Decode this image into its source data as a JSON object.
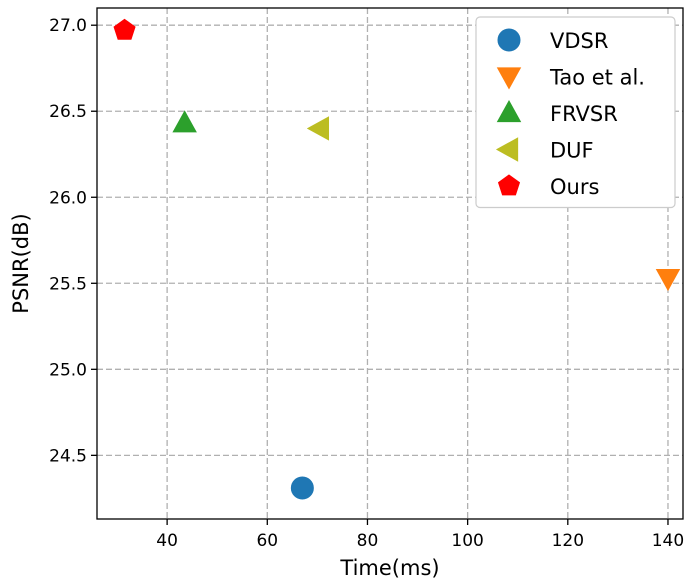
{
  "chart_data": {
    "type": "scatter",
    "title": "",
    "xlabel": "Time(ms)",
    "ylabel": "PSNR(dB)",
    "xlim": [
      26,
      143
    ],
    "ylim": [
      24.13,
      27.1
    ],
    "xticks": [
      40,
      60,
      80,
      100,
      120,
      140
    ],
    "yticks": [
      24.5,
      25.0,
      25.5,
      26.0,
      26.5,
      27.0
    ],
    "xtick_labels": [
      "40",
      "60",
      "80",
      "100",
      "120",
      "140"
    ],
    "ytick_labels": [
      "24.5",
      "25.0",
      "25.5",
      "26.0",
      "26.5",
      "27.0"
    ],
    "grid": true,
    "legend_position": "top-right",
    "series": [
      {
        "name": "VDSR",
        "marker": "circle",
        "color": "#1f77b4",
        "x": 67,
        "y": 24.31
      },
      {
        "name": "Tao et al.",
        "marker": "triangle-down",
        "color": "#ff7f0e",
        "x": 140,
        "y": 25.53
      },
      {
        "name": "FRVSR",
        "marker": "triangle-up",
        "color": "#2ca02c",
        "x": 43.5,
        "y": 26.43
      },
      {
        "name": "DUF",
        "marker": "triangle-left",
        "color": "#bcbd22",
        "x": 70.5,
        "y": 26.4
      },
      {
        "name": "Ours",
        "marker": "pentagon",
        "color": "#ff0000",
        "x": 31.5,
        "y": 26.97
      }
    ]
  }
}
